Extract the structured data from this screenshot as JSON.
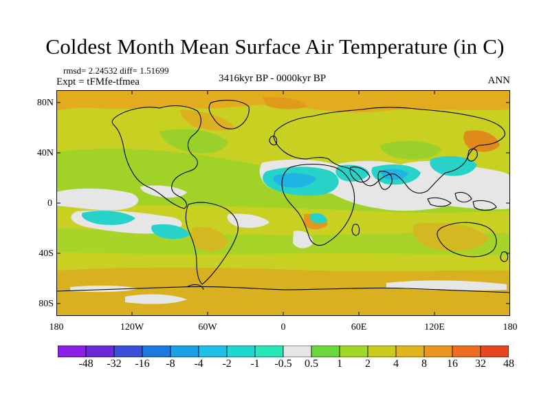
{
  "title": "Coldest Month Mean Surface Air Temperature (in C)",
  "stats": "rmsd= 2.24532 diff= 1.51699",
  "experiment": "Expt = tFMfe-tfmea",
  "period": "3416kyr BP - 0000kyr BP",
  "season": "ANN",
  "lat_ticks": [
    "80N",
    "40N",
    "0",
    "40S",
    "80S"
  ],
  "lon_ticks": [
    "180",
    "120W",
    "60W",
    "0",
    "60E",
    "120E",
    "180"
  ],
  "colorbar": {
    "labels": [
      "-48",
      "-32",
      "-16",
      "-8",
      "-4",
      "-2",
      "-1",
      "-0.5",
      "0.5",
      "1",
      "2",
      "4",
      "8",
      "16",
      "32",
      "48"
    ],
    "colors": [
      "#8a1fe6",
      "#6a2ad8",
      "#3a4fd8",
      "#1f78e0",
      "#1ea0e6",
      "#1ec0e8",
      "#1ed8d0",
      "#28e6b8",
      "#e6e6e6",
      "#6ad83c",
      "#a0d828",
      "#c8cc1e",
      "#e0b41e",
      "#e8961e",
      "#ec6e1e",
      "#e8461e"
    ]
  },
  "colors": {
    "ocean_base": "#c8d022",
    "green_warm": "#a0d228",
    "orange": "#e2ac1e",
    "light_grey": "#e6e6e6",
    "cyan": "#27d3c8",
    "blue": "#1fb4e4",
    "coast": "#000000"
  }
}
